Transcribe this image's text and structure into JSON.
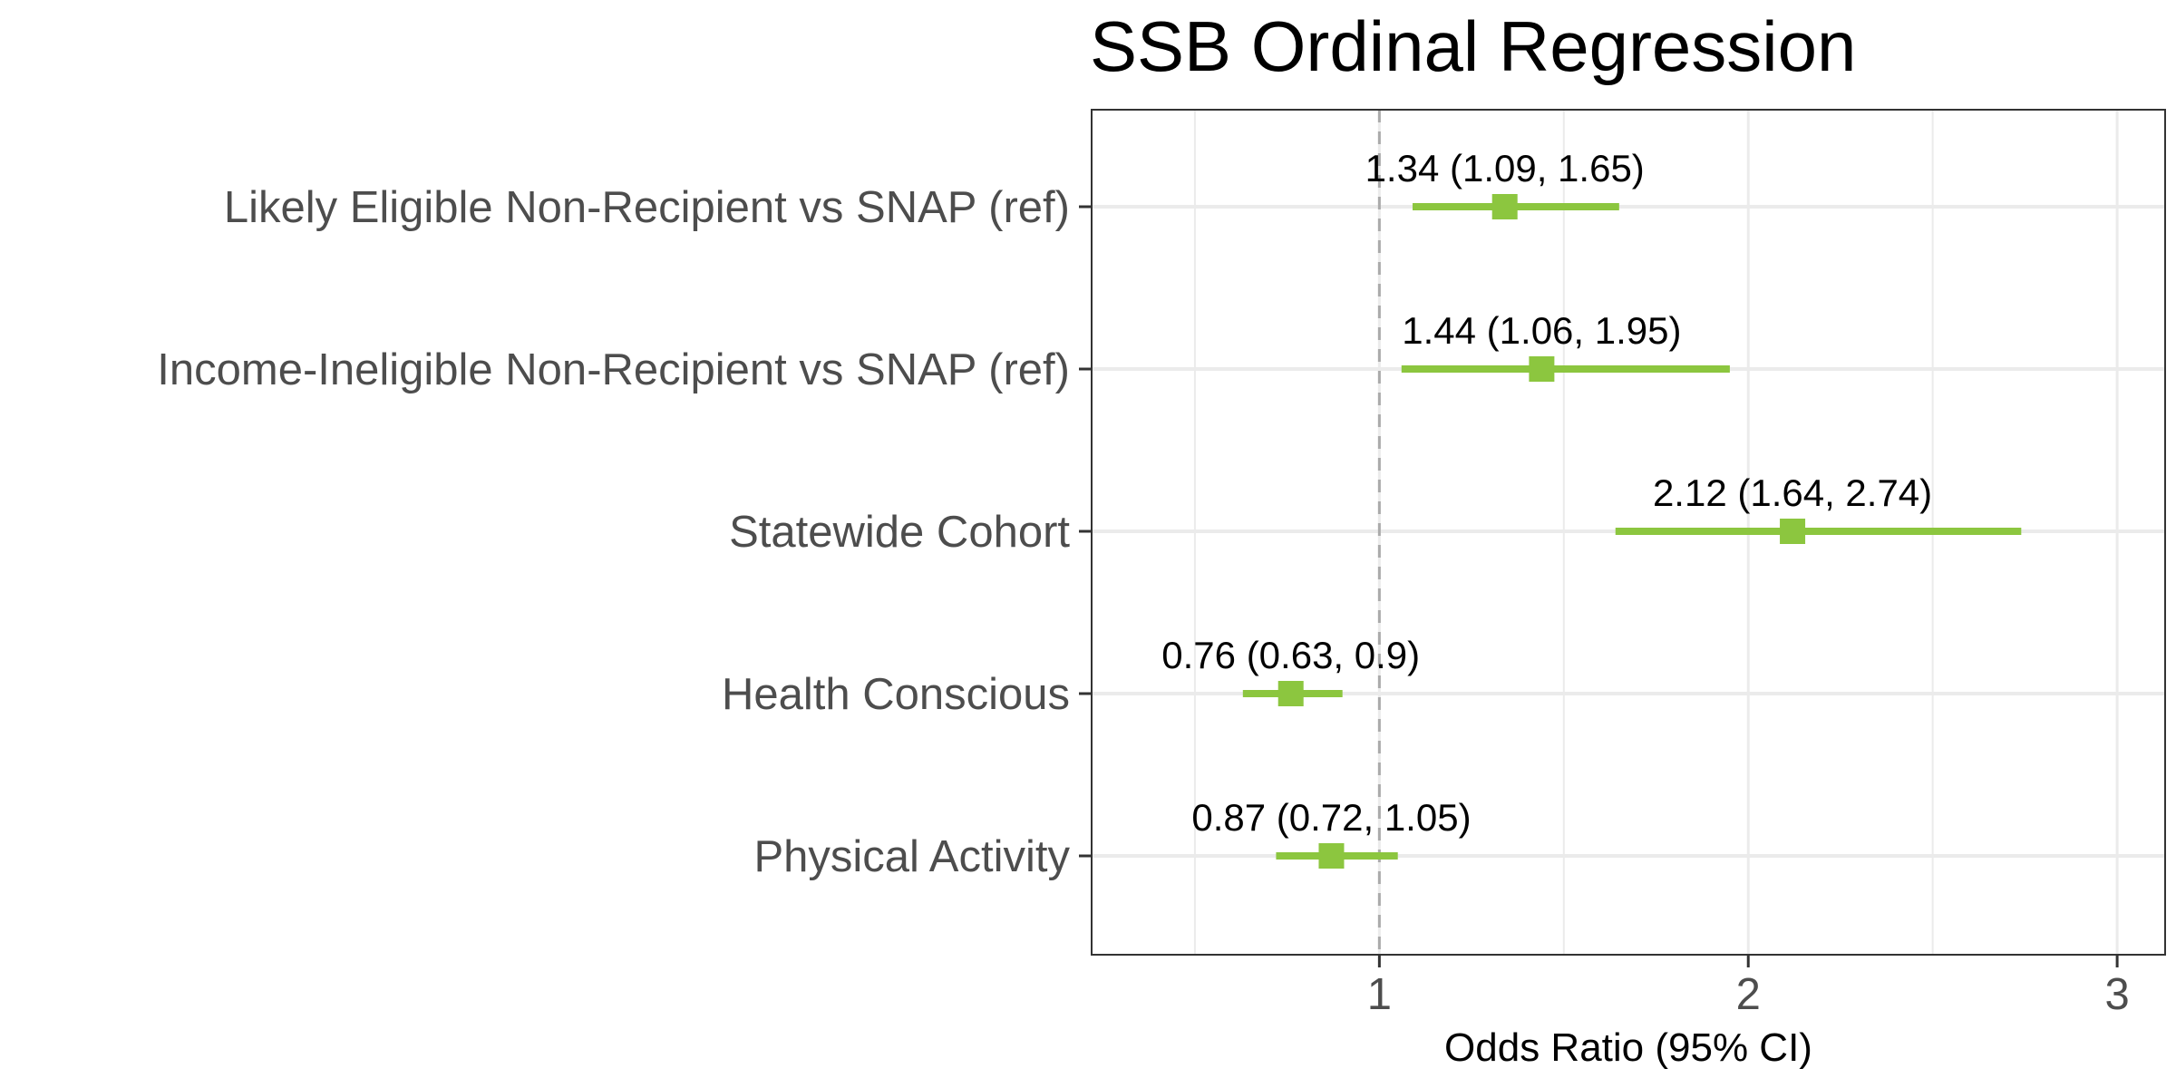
{
  "chart_data": {
    "type": "forest",
    "title": "SSB Ordinal Regression",
    "xlabel": "Odds Ratio (95% CI)",
    "ylabel": "",
    "xlim": [
      0.22,
      3.13
    ],
    "x_ticks": [
      1,
      2,
      3
    ],
    "x_minor_ticks": [
      0.5,
      1.5,
      2.5
    ],
    "x_tick_labels": [
      "1",
      "2",
      "3"
    ],
    "reference_line": 1,
    "grid": true,
    "legend": "none",
    "marker_color": "#8CC63F",
    "reference_line_color": "#AAAAAA",
    "categories": [
      "Likely Eligible Non-Recipient vs SNAP (ref)",
      "Income-Ineligible Non-Recipient vs SNAP (ref)",
      "Statewide Cohort",
      "Health Conscious",
      "Physical Activity"
    ],
    "points": [
      {
        "or": 1.34,
        "lower": 1.09,
        "upper": 1.65,
        "label": "1.34 (1.09, 1.65)"
      },
      {
        "or": 1.44,
        "lower": 1.06,
        "upper": 1.95,
        "label": "1.44 (1.06, 1.95)"
      },
      {
        "or": 2.12,
        "lower": 1.64,
        "upper": 2.74,
        "label": "2.12 (1.64, 2.74)"
      },
      {
        "or": 0.76,
        "lower": 0.63,
        "upper": 0.9,
        "label": "0.76 (0.63, 0.9)"
      },
      {
        "or": 0.87,
        "lower": 0.72,
        "upper": 1.05,
        "label": "0.87 (0.72, 1.05)"
      }
    ]
  }
}
